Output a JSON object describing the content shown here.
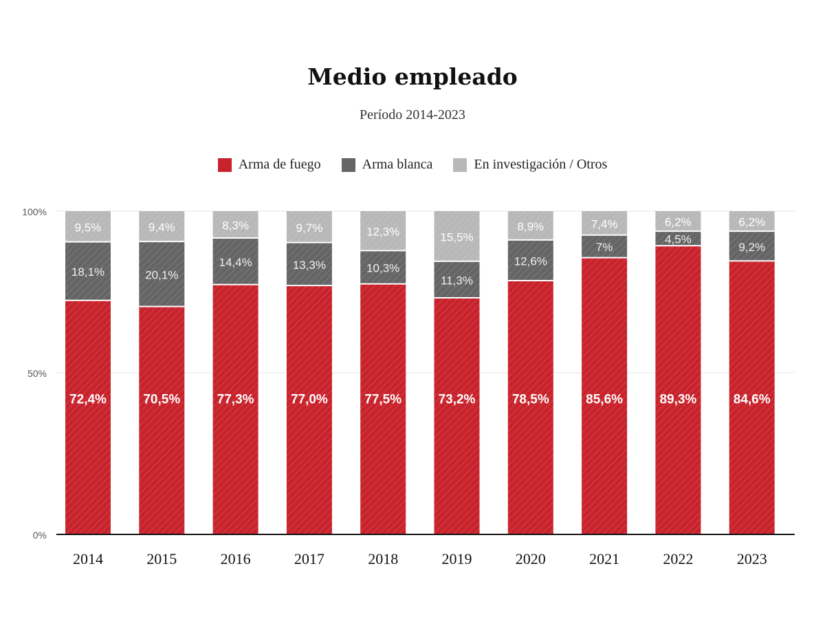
{
  "title": "Medio empleado",
  "subtitle": "Período 2014-2023",
  "colors": {
    "arma_de_fuego": "#c8232c",
    "arma_blanca": "#656565",
    "otros": "#b8b8b8",
    "axis": "#111111",
    "grid": "#e6e6e6"
  },
  "legend": [
    {
      "label": "Arma de fuego",
      "color": "#c8232c"
    },
    {
      "label": "Arma blanca",
      "color": "#656565"
    },
    {
      "label": "En investigación / Otros",
      "color": "#b8b8b8"
    }
  ],
  "chart_data": {
    "type": "bar",
    "stacked": true,
    "title": "Medio empleado",
    "subtitle": "Período 2014-2023",
    "categories": [
      "2014",
      "2015",
      "2016",
      "2017",
      "2018",
      "2019",
      "2020",
      "2021",
      "2022",
      "2023"
    ],
    "series": [
      {
        "name": "Arma de fuego",
        "values": [
          72.4,
          70.5,
          77.3,
          77.0,
          77.5,
          73.2,
          78.5,
          85.6,
          89.3,
          84.6
        ],
        "labels": [
          "72,4%",
          "70,5%",
          "77,3%",
          "77,0%",
          "77,5%",
          "73,2%",
          "78,5%",
          "85,6%",
          "89,3%",
          "84,6%"
        ]
      },
      {
        "name": "Arma blanca",
        "values": [
          18.1,
          20.1,
          14.4,
          13.3,
          10.3,
          11.3,
          12.6,
          7,
          4.5,
          9.2
        ],
        "labels": [
          "18,1%",
          "20,1%",
          "14,4%",
          "13,3%",
          "10,3%",
          "11,3%",
          "12,6%",
          "7%",
          "4,5%",
          "9,2%"
        ]
      },
      {
        "name": "En investigación / Otros",
        "values": [
          9.5,
          9.4,
          8.3,
          9.7,
          12.3,
          15.5,
          8.9,
          7.4,
          6.2,
          6.2
        ],
        "labels": [
          "9,5%",
          "9,4%",
          "8,3%",
          "9,7%",
          "12,3%",
          "15,5%",
          "8,9%",
          "7,4%",
          "6,2%",
          "6,2%"
        ]
      }
    ],
    "y_ticks": [
      "0%",
      "50%",
      "100%"
    ],
    "y_tick_values": [
      0,
      50,
      100
    ],
    "ylim": [
      0,
      100
    ],
    "grid": true,
    "legend_position": "top-center"
  }
}
